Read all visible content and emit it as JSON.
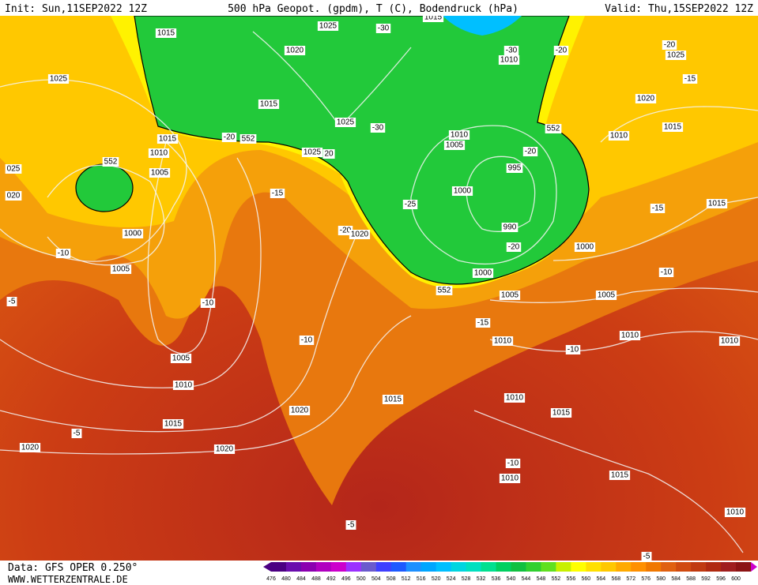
{
  "header": {
    "init": "Init: Sun,11SEP2022 12Z",
    "title": "500 hPa Geopot. (gpdm), T (C), Bodendruck (hPa)",
    "valid": "Valid: Thu,15SEP2022 12Z"
  },
  "map_labels": [
    "1015",
    "1025",
    "1015",
    "-30",
    "1020",
    "1010",
    "-30",
    "-20",
    "-20",
    "1025",
    "1025",
    "-15",
    "1020",
    "1015",
    "1025",
    "-30",
    "552",
    "1015",
    "1015",
    "-20",
    "552",
    "1010",
    "1005",
    "1010",
    "1010",
    "1025",
    "20",
    "-20",
    "552",
    "1005",
    "995",
    "025",
    "020",
    "1000",
    "-15",
    "-25",
    "1015",
    "-15",
    "1000",
    "990",
    "-20",
    "1020",
    "-20",
    "1000",
    "-10",
    "1005",
    "1000",
    "-10",
    "552",
    "1005",
    "1005",
    "-5",
    "-10",
    "-15",
    "1010",
    "1010",
    "-10",
    "1010",
    "-10",
    "1005",
    "1010",
    "1010",
    "1015",
    "1020",
    "1015",
    "1015",
    "-5",
    "1020",
    "1020",
    "-10",
    "1010",
    "1015",
    "1010",
    "-5",
    "-5"
  ],
  "footer": {
    "data": "Data: GFS OPER 0.250°",
    "site": "WWW.WETTERZENTRALE.DE"
  },
  "scale": {
    "values": [
      476,
      480,
      484,
      488,
      492,
      496,
      500,
      504,
      508,
      512,
      516,
      520,
      524,
      528,
      532,
      536,
      540,
      544,
      548,
      552,
      556,
      560,
      564,
      568,
      572,
      576,
      580,
      584,
      588,
      592,
      596,
      600
    ],
    "colors": [
      "#4b0082",
      "#6a0dad",
      "#8b00b0",
      "#b000c0",
      "#cc00cc",
      "#9b30ff",
      "#6a5acd",
      "#3f3fff",
      "#1e5aff",
      "#1e90ff",
      "#00a6ff",
      "#00bfff",
      "#00d5e0",
      "#00e0c0",
      "#00e090",
      "#00d060",
      "#10c040",
      "#30d030",
      "#60e020",
      "#c8f000",
      "#ffff00",
      "#ffe000",
      "#ffc800",
      "#ffaa00",
      "#ff9000",
      "#f07800",
      "#e06010",
      "#d04a10",
      "#c03a10",
      "#b02a10",
      "#a01e1e",
      "#8c1414"
    ]
  }
}
